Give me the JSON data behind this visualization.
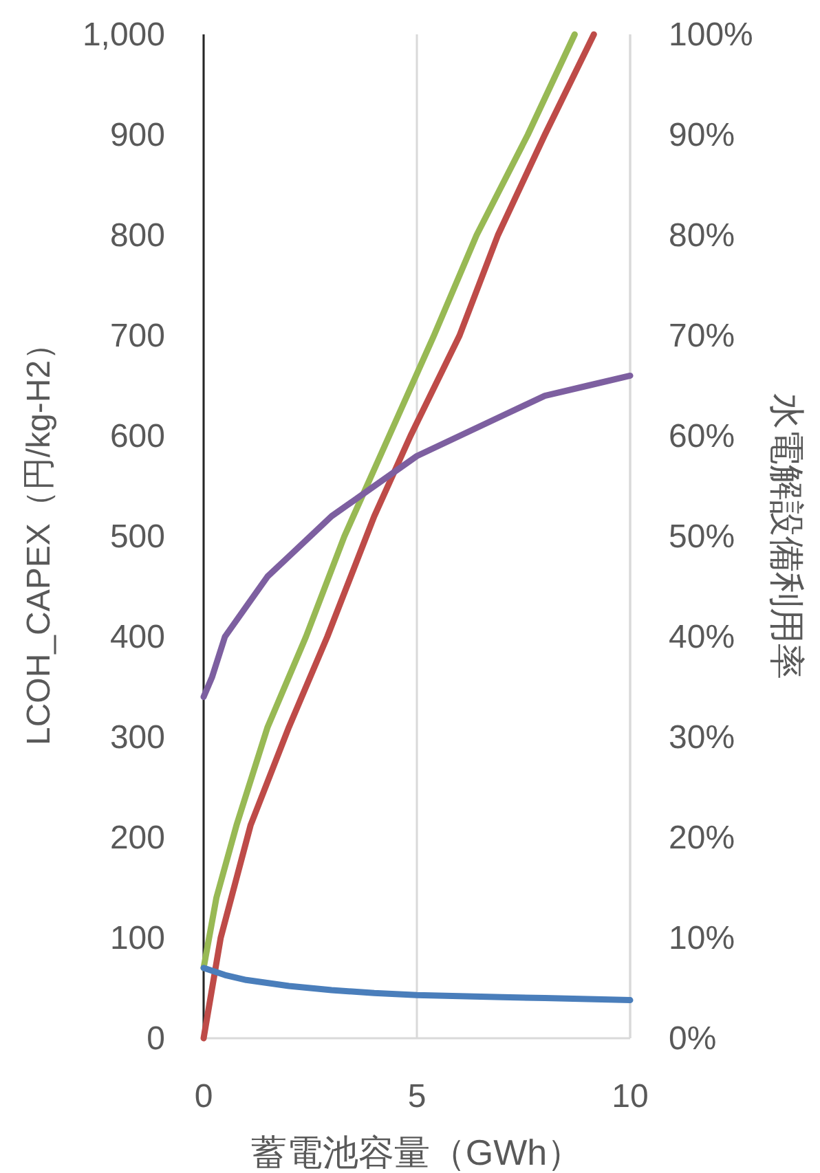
{
  "chart_data": {
    "type": "line",
    "xlabel": "蓄電池容量（GWh）",
    "ylabel": "LCOH_CAPEX（円/kg-H2）",
    "y2label": "水電解設備利用率",
    "xlim": [
      0,
      10
    ],
    "xticks": [
      0,
      5,
      10
    ],
    "ylim": [
      0,
      1000
    ],
    "yticks": [
      0,
      100,
      200,
      300,
      400,
      500,
      600,
      700,
      800,
      900,
      {
        "value": 1000,
        "label": "1,000"
      }
    ],
    "y2lim": [
      0,
      100
    ],
    "y2ticks": [
      {
        "value": 0,
        "label": "0%"
      },
      {
        "value": 10,
        "label": "10%"
      },
      {
        "value": 20,
        "label": "20%"
      },
      {
        "value": 30,
        "label": "30%"
      },
      {
        "value": 40,
        "label": "40%"
      },
      {
        "value": 50,
        "label": "50%"
      },
      {
        "value": 60,
        "label": "60%"
      },
      {
        "value": 70,
        "label": "70%"
      },
      {
        "value": 80,
        "label": "80%"
      },
      {
        "value": 90,
        "label": "90%"
      },
      {
        "value": 100,
        "label": "100%"
      }
    ],
    "grid": "x",
    "marker": "none",
    "line_style": "solid",
    "series": [
      {
        "color": "#98b954",
        "x": [
          0,
          0.3,
          0.77,
          1.5,
          2.4,
          3.3,
          4.35,
          5.4,
          6.4,
          7.6,
          8.7
        ],
        "values": [
          70,
          140,
          212,
          310,
          400,
          500,
          600,
          700,
          800,
          900,
          1000
        ]
      },
      {
        "color": "#be4b48",
        "x": [
          0,
          0.4,
          1.1,
          2,
          2.9,
          4,
          4.85,
          6,
          6.9,
          8,
          9.15
        ],
        "values": [
          0,
          100,
          212,
          310,
          400,
          520,
          600,
          700,
          800,
          900,
          1000
        ]
      },
      {
        "color": "#4a7ebb",
        "x": [
          0,
          0.5,
          1,
          2,
          3,
          4,
          5,
          6,
          7,
          8,
          9,
          10
        ],
        "values": [
          70,
          63,
          58,
          52,
          48,
          45,
          43,
          42,
          41,
          40,
          39,
          38
        ]
      },
      {
        "color": "#7d5fa0",
        "axis": "y2",
        "x": [
          0,
          0.2,
          0.5,
          1,
          1.5,
          2,
          3,
          4,
          5,
          6,
          7,
          8,
          9,
          10
        ],
        "values": [
          34,
          36,
          40,
          43,
          46,
          48,
          52,
          55,
          58,
          60,
          62,
          64,
          65,
          66
        ]
      }
    ]
  }
}
